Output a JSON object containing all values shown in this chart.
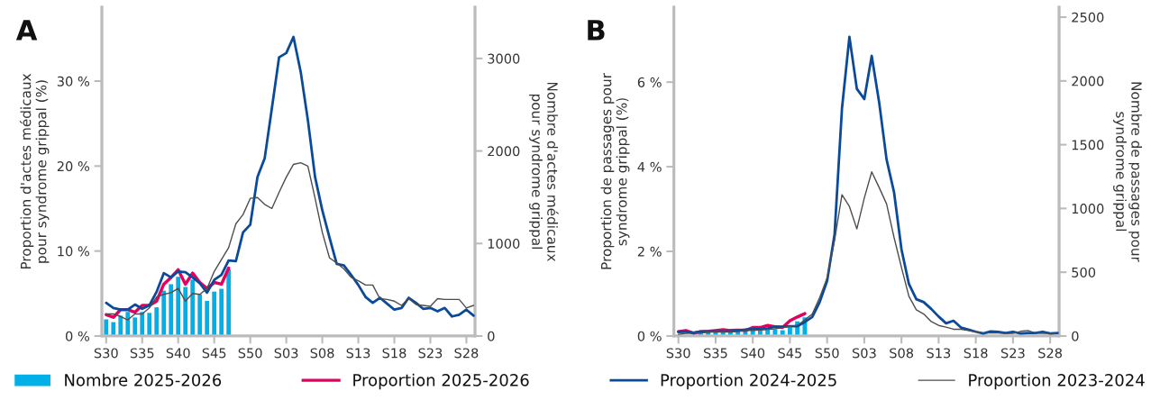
{
  "chart_data": [
    {
      "type": "line",
      "title": "A",
      "ylabel": "Proportion d'actes médicaux\npour syndrome grippal (%)",
      "y2label": "Nombre d'actes médicaux\npour syndrome grippal",
      "categories": [
        "S30",
        null,
        null,
        null,
        null,
        "S35",
        null,
        null,
        null,
        null,
        "S40",
        null,
        null,
        null,
        null,
        "S45",
        null,
        null,
        null,
        null,
        "S50",
        null,
        null,
        null,
        null,
        "S03",
        null,
        null,
        null,
        null,
        "S08",
        null,
        null,
        null,
        null,
        "S13",
        null,
        null,
        null,
        null,
        "S18",
        null,
        null,
        null,
        null,
        "S23",
        null,
        null,
        null,
        null,
        "S28",
        null
      ],
      "ylim": [
        0,
        38.7
      ],
      "yticks": [
        {
          "value": 0,
          "label": "0 %"
        },
        {
          "value": 10,
          "label": "10 %"
        },
        {
          "value": 20,
          "label": "20 %"
        },
        {
          "value": 30,
          "label": "30 %"
        }
      ],
      "y2lim": [
        0,
        3554
      ],
      "y2ticks": [
        0,
        1000,
        2000,
        3000
      ],
      "legend": "bottom",
      "grid": false,
      "series": [
        {
          "name": "Nombre 2025-2026",
          "type": "bar",
          "axis": "y2",
          "color": "#00b0e6",
          "values": [
            180,
            150,
            220,
            260,
            200,
            260,
            250,
            310,
            490,
            560,
            640,
            530,
            610,
            450,
            380,
            480,
            510,
            720,
            null,
            null,
            null,
            null,
            null,
            null,
            null,
            null,
            null,
            null,
            null,
            null,
            null,
            null,
            null,
            null,
            null,
            null,
            null,
            null,
            null,
            null,
            null,
            null,
            null,
            null,
            null,
            null,
            null,
            null,
            null,
            null,
            null,
            null
          ]
        },
        {
          "name": "Proportion 2025-2026",
          "color": "#e4005e",
          "values": [
            2.5,
            2.2,
            3.1,
            3.1,
            2.8,
            3.6,
            3.6,
            4.1,
            6.1,
            6.9,
            7.8,
            6.1,
            7.4,
            6.3,
            5.6,
            6.3,
            6.1,
            8.0,
            null,
            null,
            null,
            null,
            null,
            null,
            null,
            null,
            null,
            null,
            null,
            null,
            null,
            null,
            null,
            null,
            null,
            null,
            null,
            null,
            null,
            null,
            null,
            null,
            null,
            null,
            null,
            null,
            null,
            null,
            null,
            null,
            null,
            null
          ]
        },
        {
          "name": "Proportion 2024-2025",
          "color": "#0a4a9a",
          "values": [
            3.9,
            3.3,
            3.1,
            3.1,
            3.7,
            3.2,
            3.6,
            5.2,
            7.4,
            6.9,
            7.6,
            7.5,
            6.9,
            6.2,
            5.1,
            6.6,
            7.2,
            8.9,
            8.8,
            12.2,
            13.1,
            18.7,
            20.9,
            26.8,
            32.8,
            33.3,
            35.2,
            31.1,
            25.4,
            18.7,
            14.8,
            11.6,
            8.5,
            8.3,
            7.2,
            6.0,
            4.6,
            3.9,
            4.5,
            3.8,
            3.1,
            3.3,
            4.5,
            3.9,
            3.2,
            3.3,
            2.9,
            3.3,
            2.3,
            2.5,
            3.1,
            2.4
          ]
        },
        {
          "name": "Proportion 2023-2024",
          "color": "#4d4d4d",
          "values": [
            2.6,
            2.6,
            2.3,
            1.9,
            2.6,
            2.6,
            3.3,
            4.6,
            4.9,
            5.1,
            5.6,
            4.1,
            5.0,
            4.9,
            5.6,
            7.6,
            9.0,
            10.4,
            13.2,
            14.3,
            16.2,
            16.3,
            15.5,
            15.0,
            16.9,
            18.7,
            20.2,
            20.4,
            20.0,
            16.2,
            12.2,
            9.2,
            8.6,
            7.9,
            6.9,
            6.5,
            6.0,
            6.0,
            4.4,
            4.3,
            4.1,
            3.6,
            4.4,
            3.7,
            3.6,
            3.5,
            4.4,
            4.3,
            4.3,
            4.3,
            3.3,
            3.6
          ]
        }
      ]
    },
    {
      "type": "line",
      "title": "B",
      "ylabel": "Proportion de passages pour\nsyndrome grippal (%)",
      "y2label": "Nombre de passages pour\nsyndrome grippal",
      "categories": [
        "S30",
        null,
        null,
        null,
        null,
        "S35",
        null,
        null,
        null,
        null,
        "S40",
        null,
        null,
        null,
        null,
        "S45",
        null,
        null,
        null,
        null,
        "S50",
        null,
        null,
        null,
        null,
        "S03",
        null,
        null,
        null,
        null,
        "S08",
        null,
        null,
        null,
        null,
        "S13",
        null,
        null,
        null,
        null,
        "S18",
        null,
        null,
        null,
        null,
        "S23",
        null,
        null,
        null,
        null,
        "S28",
        null
      ],
      "ylim": [
        0,
        7.77
      ],
      "yticks": [
        {
          "value": 0,
          "label": "0 %"
        },
        {
          "value": 2,
          "label": "2 %"
        },
        {
          "value": 4,
          "label": "4 %"
        },
        {
          "value": 6,
          "label": "6 %"
        }
      ],
      "y2lim": [
        0,
        2578
      ],
      "y2ticks": [
        0,
        500,
        1000,
        1500,
        2000,
        2500
      ],
      "legend": "bottom",
      "grid": false,
      "series": [
        {
          "name": "Nombre 2025-2026",
          "type": "bar",
          "axis": "y2",
          "color": "#00b0e6",
          "values": [
            null,
            null,
            null,
            25,
            30,
            30,
            30,
            30,
            35,
            40,
            45,
            45,
            50,
            50,
            45,
            68,
            115,
            146,
            null,
            null,
            null,
            null,
            null,
            null,
            null,
            null,
            null,
            null,
            null,
            null,
            null,
            null,
            null,
            null,
            null,
            null,
            null,
            null,
            null,
            null,
            null,
            null,
            null,
            null,
            null,
            null,
            null,
            null,
            null,
            null,
            null,
            null
          ]
        },
        {
          "name": "Proportion 2025-2026",
          "color": "#e4005e",
          "values": [
            0.1,
            0.13,
            0.07,
            0.1,
            0.11,
            0.13,
            0.15,
            0.13,
            0.14,
            0.13,
            0.2,
            0.2,
            0.25,
            0.22,
            0.2,
            0.36,
            0.45,
            0.53,
            null,
            null,
            null,
            null,
            null,
            null,
            null,
            null,
            null,
            null,
            null,
            null,
            null,
            null,
            null,
            null,
            null,
            null,
            null,
            null,
            null,
            null,
            null,
            null,
            null,
            null,
            null,
            null,
            null,
            null,
            null,
            null,
            null,
            null
          ]
        },
        {
          "name": "Proportion 2024-2025",
          "color": "#0a4a9a",
          "values": [
            0.1,
            0.1,
            0.07,
            0.11,
            0.11,
            0.11,
            0.11,
            0.11,
            0.13,
            0.15,
            0.16,
            0.16,
            0.18,
            0.22,
            0.22,
            0.23,
            0.23,
            0.33,
            0.45,
            0.8,
            1.3,
            2.4,
            5.38,
            7.07,
            5.84,
            5.6,
            6.62,
            5.52,
            4.17,
            3.4,
            2.05,
            1.23,
            0.87,
            0.8,
            0.64,
            0.46,
            0.3,
            0.36,
            0.2,
            0.15,
            0.1,
            0.06,
            0.11,
            0.1,
            0.07,
            0.1,
            0.06,
            0.07,
            0.07,
            0.1,
            0.06,
            0.07
          ]
        },
        {
          "name": "Proportion 2023-2024",
          "color": "#4d4d4d",
          "values": [
            0.04,
            0.06,
            0.07,
            0.07,
            0.1,
            0.1,
            0.1,
            0.1,
            0.11,
            0.13,
            0.13,
            0.14,
            0.16,
            0.17,
            0.2,
            0.23,
            0.25,
            0.38,
            0.52,
            0.91,
            1.37,
            2.26,
            3.34,
            3.06,
            2.53,
            3.26,
            3.88,
            3.51,
            3.12,
            2.33,
            1.62,
            0.94,
            0.62,
            0.52,
            0.34,
            0.25,
            0.21,
            0.16,
            0.16,
            0.13,
            0.1,
            0.07,
            0.07,
            0.07,
            0.06,
            0.06,
            0.11,
            0.13,
            0.07,
            0.06,
            0.06,
            0.07
          ]
        }
      ]
    }
  ]
}
